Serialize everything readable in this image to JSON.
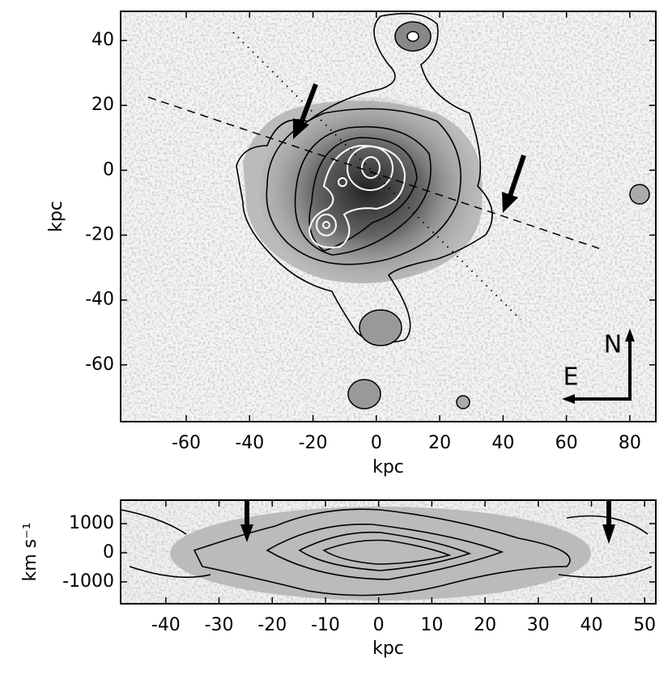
{
  "chart_data": [
    {
      "type": "image",
      "xlabel": "kpc",
      "ylabel": "kpc",
      "xlim": [
        -80.7,
        88.2
      ],
      "ylim": [
        -77.5,
        49
      ],
      "xticks": [
        -60,
        -40,
        -20,
        0,
        20,
        40,
        60,
        80
      ],
      "yticks": [
        -60,
        -40,
        -20,
        0,
        20,
        40
      ],
      "annotations": [
        "N",
        "E"
      ]
    },
    {
      "type": "image",
      "xlabel": "kpc",
      "ylabel": "km s⁻¹",
      "xlim": [
        -48.5,
        52.1
      ],
      "ylim": [
        -1750,
        1806
      ],
      "xticks": [
        -40,
        -30,
        -20,
        -10,
        0,
        10,
        20,
        30,
        40,
        50
      ],
      "yticks": [
        -1000,
        0,
        1000
      ]
    }
  ]
}
